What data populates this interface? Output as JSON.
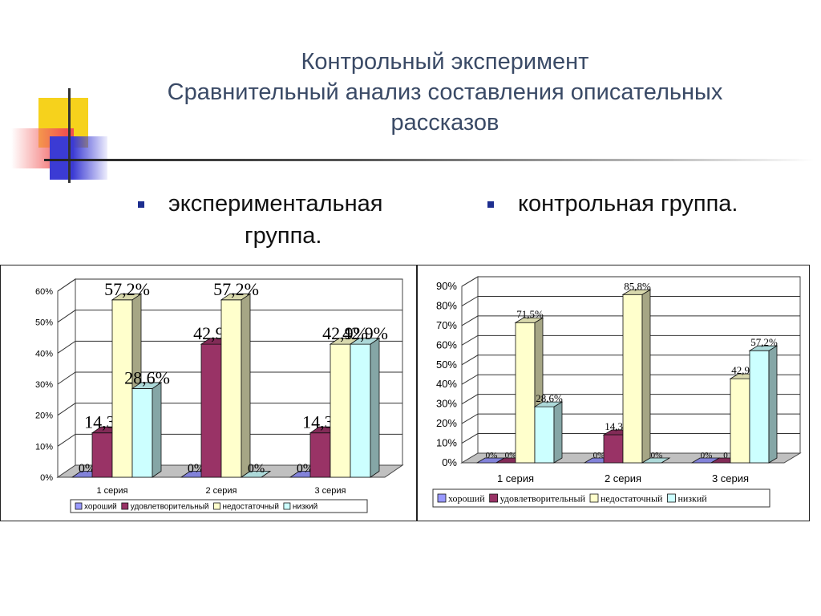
{
  "title": {
    "line1": "Контрольный эксперимент",
    "line2": "Сравнительный анализ составления описательных",
    "line3": "рассказов"
  },
  "bullets": {
    "experimental_line1": "экспериментальная",
    "experimental_line2": "группа.",
    "control": "контрольная группа."
  },
  "colors": {
    "хороший": "#9999ff",
    "удовлетворительный": "#993366",
    "недостаточный": "#ffffcc",
    "низкий": "#ccffff",
    "title": "#3a4a66",
    "bullet_marker": "#1d2e8f"
  },
  "chart_data": [
    {
      "type": "bar",
      "categories": [
        "1 серия",
        "2 серия",
        "3 серия"
      ],
      "series": [
        {
          "name": "хороший",
          "values": [
            0,
            0,
            0
          ],
          "labels": [
            "0%",
            "0%",
            "0%"
          ]
        },
        {
          "name": "удовлетворительный",
          "values": [
            14.3,
            42.9,
            14.3
          ],
          "labels": [
            "14,3%",
            "42,9%",
            "14,3%"
          ]
        },
        {
          "name": "недостаточный",
          "values": [
            57.2,
            57.2,
            42.9
          ],
          "labels": [
            "57,2%",
            "57,2%",
            "42,9%"
          ]
        },
        {
          "name": "низкий",
          "values": [
            28.6,
            0,
            42.9
          ],
          "labels": [
            "28,6%",
            "0%",
            "42,9%"
          ]
        }
      ],
      "yticks": [
        "0%",
        "10%",
        "20%",
        "30%",
        "40%",
        "50%",
        "60%"
      ],
      "ylim": [
        0,
        60
      ],
      "grid": true,
      "legend": "bottom"
    },
    {
      "type": "bar",
      "categories": [
        "1 серия",
        "2 серия",
        "3 серия"
      ],
      "series": [
        {
          "name": "хороший",
          "values": [
            0,
            0,
            0
          ],
          "labels": [
            "0%",
            "0%",
            "0%"
          ]
        },
        {
          "name": "удовлетворительный",
          "values": [
            0,
            14.3,
            0
          ],
          "labels": [
            "0%",
            "14,3%",
            "0"
          ]
        },
        {
          "name": "недостаточный",
          "values": [
            71.5,
            85.8,
            42.9
          ],
          "labels": [
            "71,5%",
            "85,8%",
            "42,9%"
          ]
        },
        {
          "name": "низкий",
          "values": [
            28.6,
            0,
            57.2
          ],
          "labels": [
            "28,6%",
            "0%",
            "57,2%"
          ]
        }
      ],
      "yticks": [
        "0%",
        "10%",
        "20%",
        "30%",
        "40%",
        "50%",
        "60%",
        "70%",
        "80%",
        "90%"
      ],
      "ylim": [
        0,
        90
      ],
      "grid": true,
      "legend": "bottom"
    }
  ]
}
